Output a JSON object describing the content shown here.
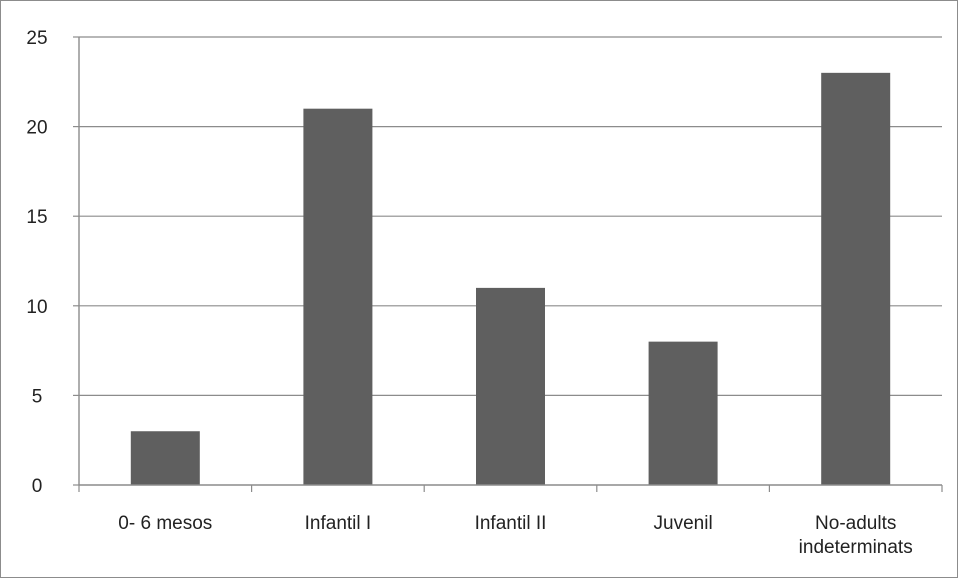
{
  "chart_data": {
    "type": "bar",
    "categories": [
      [
        "0- 6 mesos"
      ],
      [
        "Infantil I"
      ],
      [
        "Infantil II"
      ],
      [
        "Juvenil"
      ],
      [
        "No-adults",
        "indeterminats"
      ]
    ],
    "values": [
      3,
      21,
      11,
      8,
      23
    ],
    "ylim": [
      0,
      25
    ],
    "yticks": [
      "0",
      "5",
      "10",
      "15",
      "20",
      "25"
    ],
    "title": "",
    "xlabel": "",
    "ylabel": "",
    "grid": true,
    "legend": "none",
    "bar_color": "#5f5f5f",
    "gridline_color": "#8c8c8c"
  }
}
